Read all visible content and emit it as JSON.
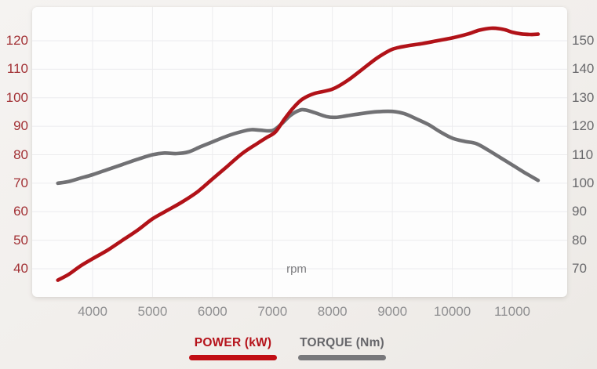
{
  "chart_data": {
    "type": "line",
    "title": "",
    "xlabel": "rpm",
    "x_ticks": [
      "4000",
      "5000",
      "6000",
      "7000",
      "8000",
      "9000",
      "10000",
      "11000"
    ],
    "x_tick_values": [
      4000,
      5000,
      6000,
      7000,
      8000,
      9000,
      10000,
      11000
    ],
    "x_range": [
      3420,
      11430
    ],
    "grid": true,
    "legend_position": "bottom",
    "left_axis": {
      "name": "POWER (kW)",
      "unit": "kW",
      "color": "#a23135",
      "ticks": [
        120,
        110,
        100,
        90,
        80,
        70,
        60,
        50,
        40
      ],
      "top_value": 120,
      "step": 10
    },
    "right_axis": {
      "name": "TORQUE (Nm)",
      "unit": "Nm",
      "color": "#68686b",
      "ticks": [
        150,
        140,
        130,
        120,
        110,
        100,
        90,
        80,
        70
      ],
      "top_value": 150,
      "step": 10
    },
    "series": [
      {
        "name": "POWER (kW)",
        "unit": "kW",
        "axis": "left",
        "color": "#b11218",
        "points": [
          [
            3420,
            36
          ],
          [
            3600,
            38
          ],
          [
            3800,
            41
          ],
          [
            4000,
            43.5
          ],
          [
            4250,
            46.5
          ],
          [
            4500,
            50
          ],
          [
            4750,
            53.5
          ],
          [
            5000,
            57.5
          ],
          [
            5250,
            60.5
          ],
          [
            5500,
            63.5
          ],
          [
            5750,
            67
          ],
          [
            6000,
            71.5
          ],
          [
            6250,
            76
          ],
          [
            6500,
            80.5
          ],
          [
            6750,
            84
          ],
          [
            6900,
            86
          ],
          [
            7050,
            88
          ],
          [
            7200,
            92.5
          ],
          [
            7350,
            96.5
          ],
          [
            7500,
            99.5
          ],
          [
            7700,
            101.5
          ],
          [
            8000,
            103
          ],
          [
            8250,
            106
          ],
          [
            8500,
            110
          ],
          [
            8750,
            114
          ],
          [
            9000,
            117
          ],
          [
            9250,
            118.2
          ],
          [
            9500,
            119
          ],
          [
            9750,
            120
          ],
          [
            10000,
            121
          ],
          [
            10250,
            122.3
          ],
          [
            10450,
            123.7
          ],
          [
            10650,
            124.4
          ],
          [
            10850,
            124
          ],
          [
            11000,
            123
          ],
          [
            11150,
            122.4
          ],
          [
            11300,
            122.2
          ],
          [
            11430,
            122.3
          ]
        ]
      },
      {
        "name": "TORQUE (Nm)",
        "unit": "Nm",
        "axis": "right",
        "color": "#717174",
        "points": [
          [
            3420,
            100
          ],
          [
            3600,
            100.6
          ],
          [
            3800,
            101.8
          ],
          [
            4000,
            103
          ],
          [
            4250,
            104.8
          ],
          [
            4500,
            106.6
          ],
          [
            4750,
            108.4
          ],
          [
            5000,
            110
          ],
          [
            5200,
            110.6
          ],
          [
            5400,
            110.4
          ],
          [
            5600,
            111
          ],
          [
            5800,
            112.8
          ],
          [
            6000,
            114.5
          ],
          [
            6250,
            116.6
          ],
          [
            6500,
            118.2
          ],
          [
            6650,
            118.8
          ],
          [
            6800,
            118.6
          ],
          [
            7000,
            118.5
          ],
          [
            7150,
            120.8
          ],
          [
            7300,
            123.8
          ],
          [
            7450,
            125.6
          ],
          [
            7550,
            125.7
          ],
          [
            7700,
            124.8
          ],
          [
            7900,
            123.4
          ],
          [
            8050,
            123.1
          ],
          [
            8250,
            123.7
          ],
          [
            8500,
            124.5
          ],
          [
            8750,
            125.1
          ],
          [
            9000,
            125.2
          ],
          [
            9200,
            124.4
          ],
          [
            9400,
            122.6
          ],
          [
            9600,
            120.6
          ],
          [
            9800,
            118
          ],
          [
            10000,
            115.8
          ],
          [
            10200,
            114.7
          ],
          [
            10400,
            113.9
          ],
          [
            10600,
            111.6
          ],
          [
            10800,
            109
          ],
          [
            11000,
            106.4
          ],
          [
            11200,
            103.8
          ],
          [
            11430,
            101
          ]
        ]
      }
    ]
  },
  "axis_labels": {
    "rpm_label": "rpm"
  },
  "legend": {
    "items": [
      {
        "label": "POWER (kW)",
        "text_color": "#b5121a",
        "bar_color": "#c10e14"
      },
      {
        "label": "TORQUE (Nm)",
        "text_color": "#66666a",
        "bar_color": "#78787b"
      }
    ]
  },
  "colors": {
    "page_background": "#f1eeeb",
    "card_background": "#fdfdfd",
    "gridline": "#ececee"
  }
}
